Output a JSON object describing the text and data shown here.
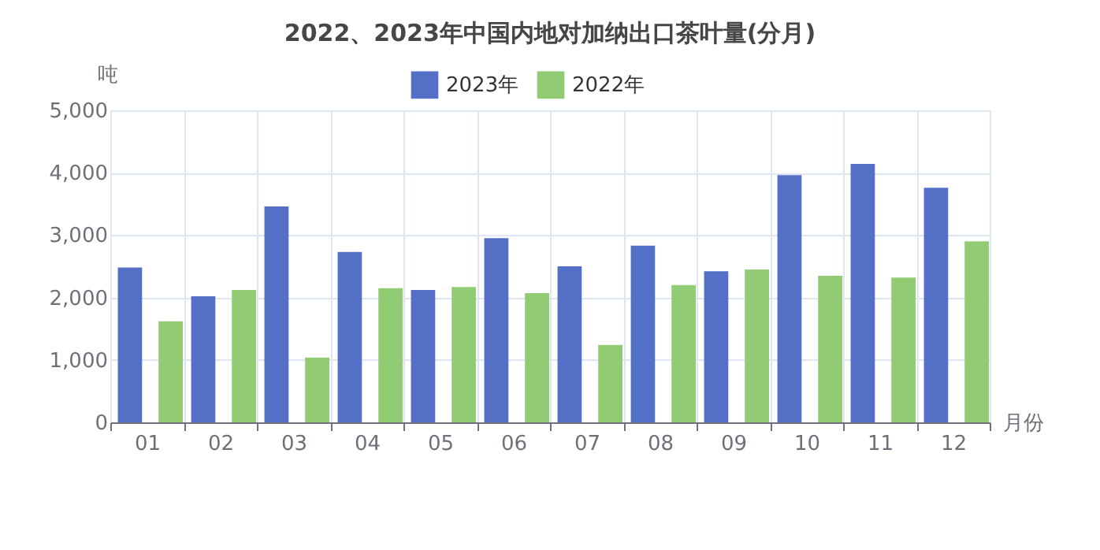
{
  "chart_data": {
    "type": "bar",
    "title": "2022、2023年中国内地对加纳出口茶叶量(分月)",
    "xlabel": "月份",
    "ylabel": "吨",
    "categories": [
      "01",
      "02",
      "03",
      "04",
      "05",
      "06",
      "07",
      "08",
      "09",
      "10",
      "11",
      "12"
    ],
    "series": [
      {
        "name": "2023年",
        "color": "#5470c6",
        "values": [
          2480,
          2020,
          3460,
          2730,
          2120,
          2950,
          2500,
          2830,
          2420,
          3960,
          4140,
          3760
        ]
      },
      {
        "name": "2022年",
        "color": "#91cc75",
        "values": [
          1620,
          2120,
          1040,
          2150,
          2170,
          2070,
          1240,
          2200,
          2450,
          2350,
          2320,
          2900
        ]
      }
    ],
    "ylim": [
      0,
      5000
    ],
    "yticks": [
      0,
      {
        "value": 1000,
        "label": "1,000"
      },
      {
        "value": 2000,
        "label": "2,000"
      },
      {
        "value": 3000,
        "label": "3,000"
      },
      {
        "value": 4000,
        "label": "4,000"
      },
      {
        "value": 5000,
        "label": "5,000"
      }
    ],
    "grid": true,
    "legend": "top"
  }
}
